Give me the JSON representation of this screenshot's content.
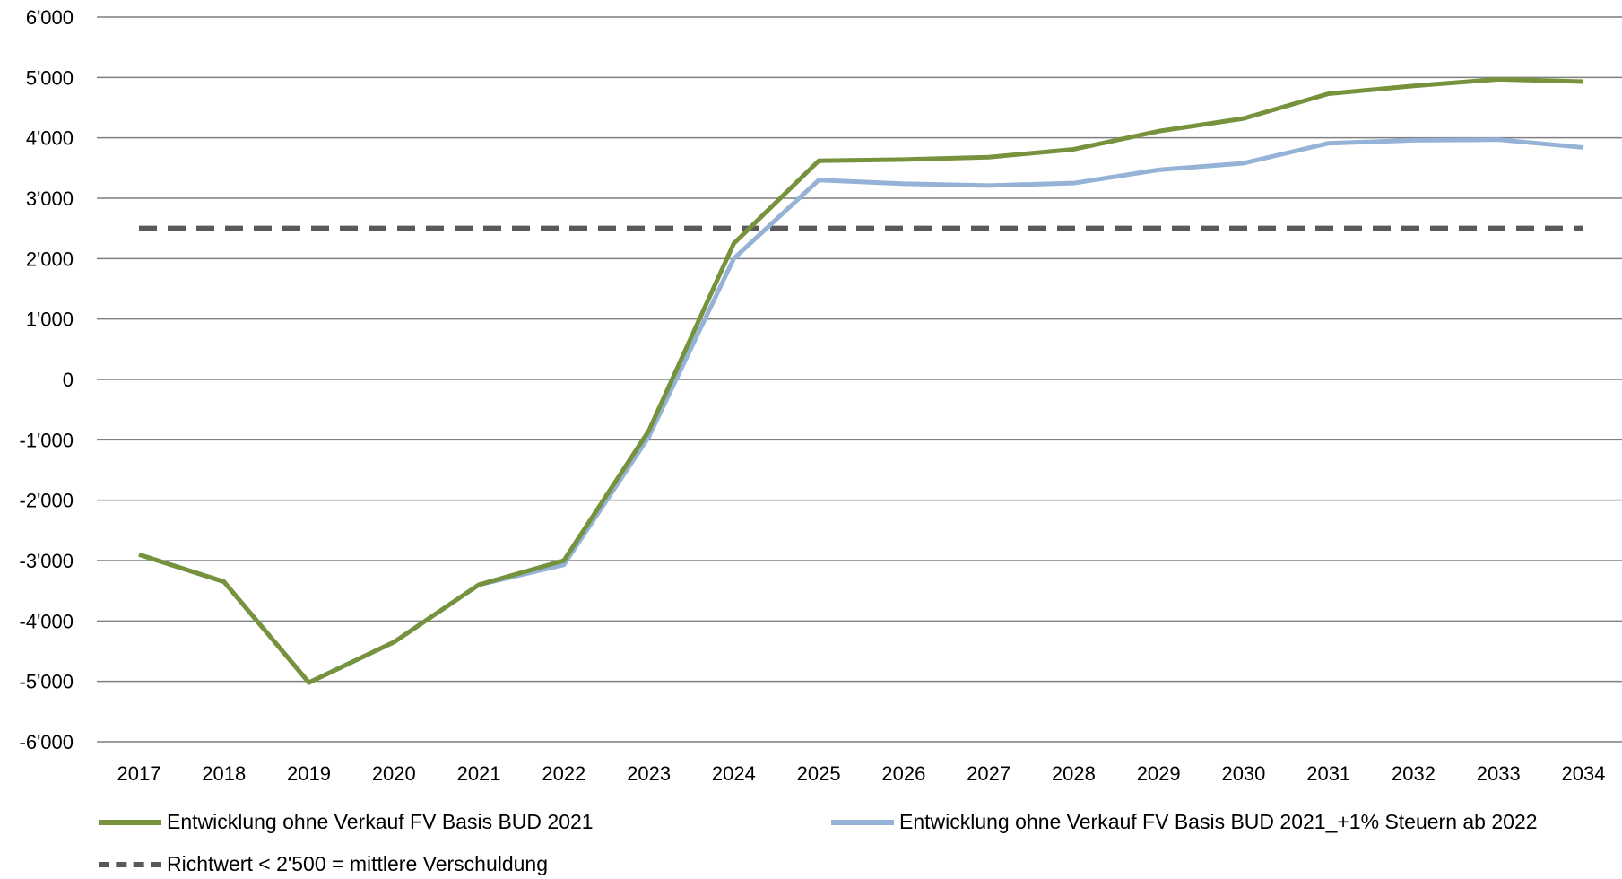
{
  "chart_data": {
    "type": "line",
    "title": "",
    "xlabel": "",
    "ylabel": "",
    "ylim": [
      -6000,
      6000
    ],
    "y_ticks": [
      6000,
      5000,
      4000,
      3000,
      2000,
      1000,
      0,
      -1000,
      -2000,
      -3000,
      -4000,
      -5000,
      -6000
    ],
    "y_tick_labels": [
      "6'000",
      "5'000",
      "4'000",
      "3'000",
      "2'000",
      "1'000",
      "0",
      "-1'000",
      "-2'000",
      "-3'000",
      "-4'000",
      "-5'000",
      "-6'000"
    ],
    "categories": [
      "2017",
      "2018",
      "2019",
      "2020",
      "2021",
      "2022",
      "2023",
      "2024",
      "2025",
      "2026",
      "2027",
      "2028",
      "2029",
      "2030",
      "2031",
      "2032",
      "2033",
      "2034"
    ],
    "grid": true,
    "legend_position": "bottom",
    "series": [
      {
        "name": "Entwicklung ohne Verkauf FV Basis BUD 2021",
        "color": "#76923C",
        "style": "solid",
        "values": [
          -2900,
          -3350,
          -5020,
          -4350,
          -3400,
          -3000,
          -850,
          2250,
          3620,
          3640,
          3680,
          3810,
          4110,
          4320,
          4730,
          4860,
          4970,
          4930
        ]
      },
      {
        "name": "Entwicklung ohne Verkauf FV Basis BUD 2021_+1% Steuern ab 2022",
        "color": "#95B3D7",
        "style": "solid",
        "values": [
          -2900,
          -3350,
          -5020,
          -4350,
          -3400,
          -3070,
          -950,
          2000,
          3300,
          3240,
          3210,
          3250,
          3470,
          3580,
          3910,
          3960,
          3970,
          3840
        ]
      },
      {
        "name": "Richtwert < 2'500 = mittlere Verschuldung",
        "color": "#595959",
        "style": "dashed",
        "values": [
          2500,
          2500,
          2500,
          2500,
          2500,
          2500,
          2500,
          2500,
          2500,
          2500,
          2500,
          2500,
          2500,
          2500,
          2500,
          2500,
          2500,
          2500
        ]
      }
    ]
  }
}
